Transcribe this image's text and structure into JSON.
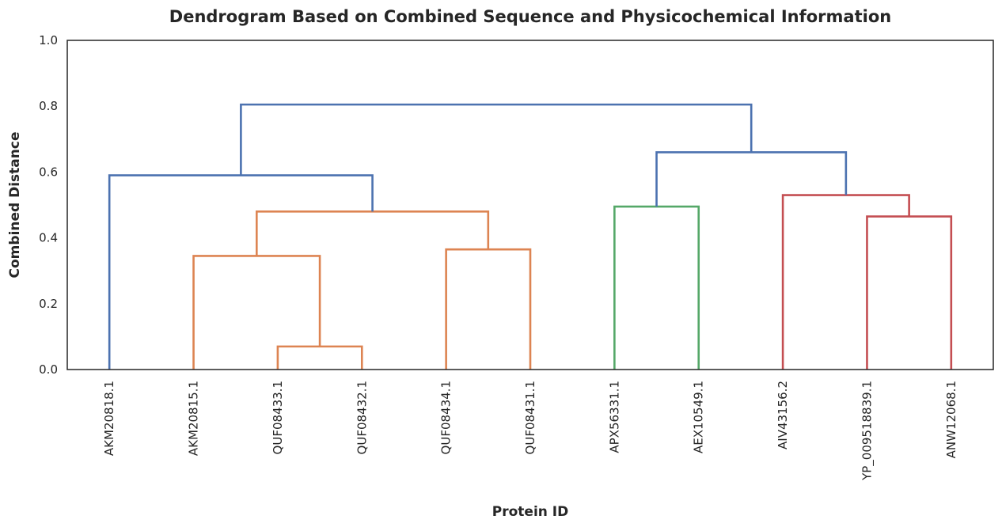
{
  "chart_data": {
    "type": "dendrogram",
    "title": "Dendrogram Based on Combined Sequence and Physicochemical Information",
    "xlabel": "Protein ID",
    "ylabel": "Combined Distance",
    "ylim": [
      0,
      1.0
    ],
    "yticks": [
      0.0,
      0.2,
      0.4,
      0.6,
      0.8,
      1.0
    ],
    "grid": false,
    "leaves": [
      "AKM20818.1",
      "AKM20815.1",
      "QUF08433.1",
      "QUF08432.1",
      "QUF08434.1",
      "QUF08431.1",
      "APX56331.1",
      "AEX10549.1",
      "AIV43156.2",
      "YP_009518839.1",
      "ANW12068.1"
    ],
    "colors": {
      "orange": "#dd8452",
      "green": "#55a868",
      "red": "#c44e52",
      "blue": "#4c72b0",
      "axis": "#262626"
    },
    "merges": [
      {
        "left": "AKM20815.1",
        "right": "QUF08433.1+QUF08432.1",
        "height": 0.345,
        "color": "orange"
      },
      {
        "left": "QUF08433.1",
        "right": "QUF08432.1",
        "height": 0.07,
        "color": "orange"
      },
      {
        "left": "QUF08434.1",
        "right": "QUF08431.1",
        "height": 0.365,
        "color": "orange"
      },
      {
        "left": "AKM20815.1..QUF08432.1",
        "right": "QUF08434.1+QUF08431.1",
        "height": 0.48,
        "color": "orange"
      },
      {
        "left": "AKM20818.1",
        "right": "AKM20815.1..QUF08431.1",
        "height": 0.59,
        "color": "blue"
      },
      {
        "left": "APX56331.1",
        "right": "AEX10549.1",
        "height": 0.495,
        "color": "green"
      },
      {
        "left": "YP_009518839.1",
        "right": "ANW12068.1",
        "height": 0.465,
        "color": "red"
      },
      {
        "left": "AIV43156.2",
        "right": "YP_009518839.1+ANW12068.1",
        "height": 0.53,
        "color": "red"
      },
      {
        "left": "APX56331.1+AEX10549.1",
        "right": "AIV43156.2..ANW12068.1",
        "height": 0.66,
        "color": "blue"
      },
      {
        "left": "AKM20818.1..QUF08431.1",
        "right": "APX56331.1..ANW12068.1",
        "height": 0.805,
        "color": "blue"
      }
    ]
  }
}
